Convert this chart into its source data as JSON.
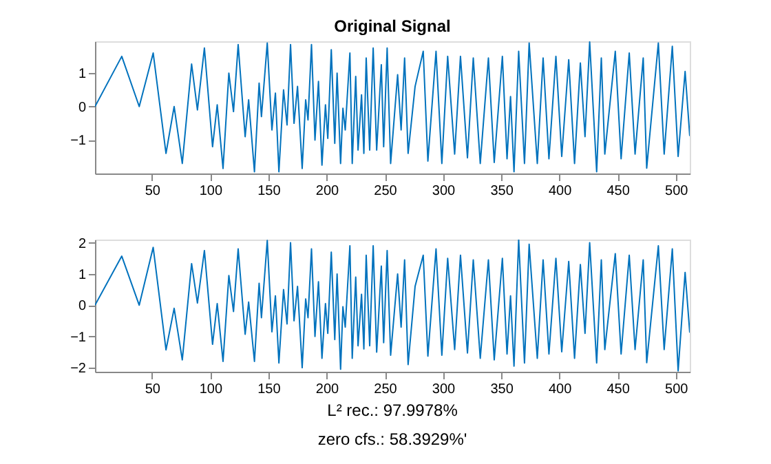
{
  "chart_data": [
    {
      "type": "line",
      "title": "Original Signal",
      "xlim": [
        1,
        512
      ],
      "xticks": [
        50,
        100,
        150,
        200,
        250,
        300,
        350,
        400,
        450,
        500
      ],
      "ylim": [
        -2.0,
        1.95
      ],
      "yticks": [
        -1,
        0,
        1
      ],
      "grid": false,
      "line_style": "solid",
      "marker": "none",
      "series": [
        {
          "color": "#0072bd",
          "x": [
            1,
            24,
            39,
            51,
            62,
            69,
            76,
            84,
            89,
            95,
            102,
            106,
            111,
            116,
            120,
            124,
            130,
            133,
            138,
            142,
            144,
            149,
            153,
            156,
            159,
            163,
            166,
            169,
            172,
            175,
            179,
            182,
            184,
            187,
            190,
            193,
            196,
            199,
            201,
            204,
            207,
            209,
            212,
            214,
            216,
            220,
            222,
            225,
            227,
            230,
            232,
            234,
            237,
            240,
            243,
            247,
            249,
            252,
            255,
            261,
            264,
            267,
            270,
            276,
            283,
            287,
            294,
            299,
            304,
            310,
            315,
            321,
            326,
            332,
            339,
            344,
            351,
            355,
            358,
            361,
            365,
            370,
            374,
            381,
            386,
            391,
            397,
            402,
            408,
            413,
            418,
            422,
            426,
            432,
            436,
            439,
            448,
            453,
            460,
            465,
            472,
            475,
            485,
            490,
            497,
            502,
            508,
            512
          ],
          "values": [
            0,
            1.5,
            0,
            1.6,
            -1.4,
            0,
            -1.7,
            1.27,
            -0.1,
            1.75,
            -1.2,
            0.05,
            -1.85,
            1.0,
            -0.15,
            1.85,
            -0.9,
            0.2,
            -1.95,
            0.7,
            -0.3,
            1.9,
            -0.7,
            0.4,
            -1.95,
            0.5,
            -0.55,
            1.85,
            -0.5,
            0.6,
            -1.85,
            0.2,
            -0.4,
            1.85,
            -1.0,
            0.75,
            -1.75,
            0.05,
            -0.95,
            1.7,
            -1.1,
            1.0,
            -1.7,
            -0.05,
            -0.7,
            1.6,
            -1.7,
            0.9,
            -1.3,
            0.35,
            -1.4,
            1.45,
            -1.3,
            1.75,
            -1.3,
            1.25,
            -1.2,
            1.75,
            -1.7,
            0.95,
            -0.7,
            1.45,
            -1.4,
            0.6,
            1.65,
            -1.63,
            1.65,
            -1.7,
            1.5,
            -1.42,
            1.5,
            -1.53,
            1.45,
            -1.7,
            1.45,
            -1.67,
            1.5,
            -1.56,
            0.3,
            -1.95,
            1.65,
            -1.7,
            1.9,
            -1.7,
            1.45,
            -1.56,
            1.5,
            -1.49,
            1.4,
            -1.7,
            1.3,
            -0.9,
            1.93,
            -1.95,
            1.45,
            -1.42,
            1.65,
            -1.56,
            1.6,
            -1.42,
            1.45,
            -1.84,
            1.9,
            -1.42,
            1.8,
            -1.49,
            1.05,
            -0.88
          ]
        }
      ]
    },
    {
      "type": "line",
      "xlim": [
        1,
        512
      ],
      "xticks": [
        50,
        100,
        150,
        200,
        250,
        300,
        350,
        400,
        450,
        500
      ],
      "ylim": [
        -2.13,
        2.1
      ],
      "yticks": [
        -2,
        -1,
        0,
        1,
        2
      ],
      "grid": false,
      "line_style": "solid",
      "marker": "none",
      "annotations": [
        "L² rec.: 97.9978%",
        "zero cfs.: 58.3929%'"
      ],
      "series": [
        {
          "color": "#0072bd",
          "x": [
            1,
            24,
            39,
            51,
            62,
            69,
            76,
            84,
            89,
            95,
            102,
            106,
            111,
            116,
            120,
            124,
            130,
            133,
            138,
            142,
            144,
            149,
            153,
            156,
            159,
            163,
            166,
            169,
            172,
            175,
            179,
            182,
            184,
            187,
            190,
            193,
            196,
            199,
            201,
            204,
            207,
            209,
            212,
            214,
            216,
            220,
            222,
            225,
            227,
            230,
            232,
            234,
            237,
            240,
            243,
            247,
            249,
            252,
            255,
            261,
            264,
            267,
            270,
            276,
            283,
            287,
            294,
            299,
            304,
            310,
            315,
            321,
            326,
            332,
            339,
            344,
            351,
            355,
            358,
            361,
            365,
            370,
            374,
            381,
            386,
            391,
            397,
            402,
            408,
            413,
            418,
            422,
            426,
            432,
            436,
            439,
            448,
            453,
            460,
            465,
            472,
            475,
            485,
            490,
            497,
            502,
            508,
            512
          ],
          "values": [
            0,
            1.57,
            0,
            1.85,
            -1.43,
            -0.1,
            -1.75,
            1.33,
            0.07,
            1.75,
            -1.25,
            0.05,
            -1.8,
            0.95,
            -0.2,
            1.8,
            -0.93,
            0.1,
            -1.8,
            0.7,
            -0.4,
            2.07,
            -0.85,
            0.3,
            -1.85,
            0.5,
            -0.6,
            2.0,
            -0.5,
            0.6,
            -2.0,
            0.2,
            -0.4,
            1.8,
            -1.0,
            0.75,
            -1.7,
            0.05,
            -0.9,
            1.7,
            -1.1,
            1.0,
            -2.05,
            -0.05,
            -0.7,
            1.9,
            -1.7,
            0.9,
            -1.3,
            0.35,
            -1.4,
            1.6,
            -1.3,
            1.9,
            -1.5,
            1.25,
            -1.2,
            1.75,
            -1.6,
            1.0,
            -0.7,
            1.45,
            -1.9,
            0.6,
            1.6,
            -1.63,
            1.8,
            -1.6,
            1.5,
            -1.42,
            1.6,
            -1.53,
            1.45,
            -1.7,
            1.45,
            -1.75,
            1.5,
            -1.56,
            0.3,
            -1.95,
            2.1,
            -1.85,
            1.95,
            -1.7,
            1.45,
            -1.56,
            1.5,
            -1.49,
            1.4,
            -1.7,
            1.3,
            -0.9,
            2.0,
            -1.85,
            1.45,
            -1.42,
            1.65,
            -1.56,
            1.6,
            -1.42,
            1.45,
            -1.84,
            1.9,
            -1.42,
            1.8,
            -2.1,
            1.05,
            -0.88
          ]
        }
      ]
    }
  ]
}
